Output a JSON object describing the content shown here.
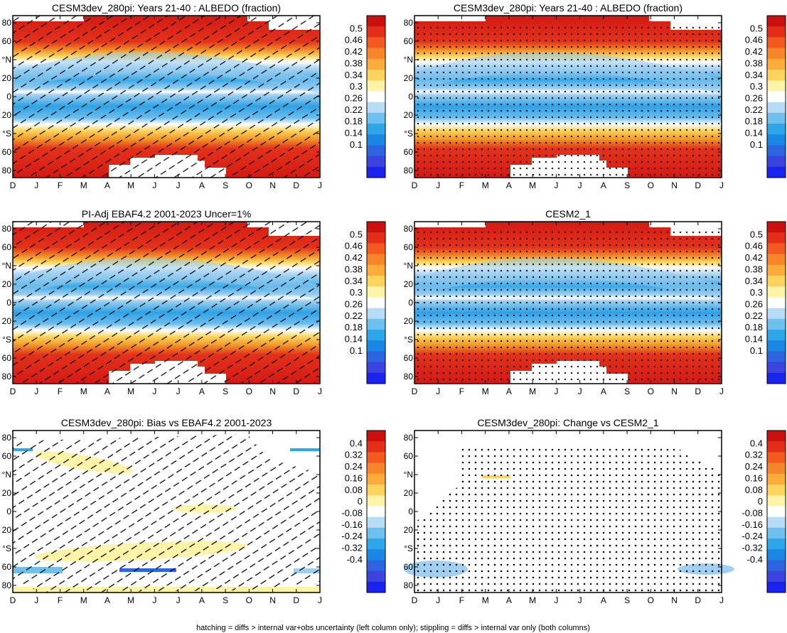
{
  "footer": "hatching = diffs > internal var+obs uncertainty (left column only); stippling = diffs > internal var only (both columns)",
  "chart_data": [
    {
      "type": "heatmap",
      "title": "CESM3dev_280pi: Years 21-40 : ALBEDO (fraction)",
      "field": "albedo",
      "overlay": "hatching",
      "x_ticks": [
        "D",
        "J",
        "F",
        "M",
        "A",
        "M",
        "J",
        "J",
        "A",
        "S",
        "O",
        "N",
        "D",
        "J"
      ],
      "y_ticks": [
        "80",
        "60",
        "°N",
        "20",
        "0",
        "20",
        "°S",
        "60",
        "80"
      ],
      "colorbar": [
        "0.5",
        "0.46",
        "0.42",
        "0.38",
        "0.34",
        "0.3",
        "0.26",
        "0.22",
        "0.18",
        "0.14",
        "0.1"
      ]
    },
    {
      "type": "heatmap",
      "title": "CESM3dev_280pi: Years 21-40 : ALBEDO (fraction)",
      "field": "albedo",
      "overlay": "stippling",
      "x_ticks": [
        "D",
        "J",
        "F",
        "M",
        "A",
        "M",
        "J",
        "J",
        "A",
        "S",
        "O",
        "N",
        "D",
        "J"
      ],
      "y_ticks": [
        "80",
        "60",
        "°N",
        "20",
        "0",
        "20",
        "°S",
        "60",
        "80"
      ],
      "colorbar": [
        "0.5",
        "0.46",
        "0.42",
        "0.38",
        "0.34",
        "0.3",
        "0.26",
        "0.22",
        "0.18",
        "0.14",
        "0.1"
      ]
    },
    {
      "type": "heatmap",
      "title": "PI-Adj EBAF4.2 2001-2023 Uncer=1%",
      "field": "albedo",
      "overlay": "hatching",
      "x_ticks": [
        "D",
        "J",
        "F",
        "M",
        "A",
        "M",
        "J",
        "J",
        "A",
        "S",
        "O",
        "N",
        "D",
        "J"
      ],
      "y_ticks": [
        "80",
        "60",
        "°N",
        "20",
        "0",
        "20",
        "°S",
        "60",
        "80"
      ],
      "colorbar": [
        "0.5",
        "0.46",
        "0.42",
        "0.38",
        "0.34",
        "0.3",
        "0.26",
        "0.22",
        "0.18",
        "0.14",
        "0.1"
      ]
    },
    {
      "type": "heatmap",
      "title": "CESM2_1",
      "field": "albedo",
      "overlay": "stippling",
      "x_ticks": [
        "D",
        "J",
        "F",
        "M",
        "A",
        "M",
        "J",
        "J",
        "A",
        "S",
        "O",
        "N",
        "D",
        "J"
      ],
      "y_ticks": [
        "80",
        "60",
        "°N",
        "20",
        "0",
        "20",
        "°S",
        "60",
        "80"
      ],
      "colorbar": [
        "0.5",
        "0.46",
        "0.42",
        "0.38",
        "0.34",
        "0.3",
        "0.26",
        "0.22",
        "0.18",
        "0.14",
        "0.1"
      ]
    },
    {
      "type": "heatmap",
      "title": "CESM3dev_280pi: Bias vs EBAF4.2 2001-2023",
      "field": "difference",
      "overlay": "hatching",
      "x_ticks": [
        "D",
        "J",
        "F",
        "M",
        "A",
        "M",
        "J",
        "J",
        "A",
        "S",
        "O",
        "N",
        "D",
        "J"
      ],
      "y_ticks": [
        "80",
        "60",
        "°N",
        "20",
        "0",
        "20",
        "°S",
        "60",
        "80"
      ],
      "colorbar": [
        "0.4",
        "0.32",
        "0.24",
        "0.16",
        "0.08",
        "0",
        "-0.08",
        "-0.16",
        "-0.24",
        "-0.32",
        "-0.4"
      ]
    },
    {
      "type": "heatmap",
      "title": "CESM3dev_280pi: Change vs CESM2_1",
      "field": "difference",
      "overlay": "stippling",
      "x_ticks": [
        "D",
        "J",
        "F",
        "M",
        "A",
        "M",
        "J",
        "J",
        "A",
        "S",
        "O",
        "N",
        "D",
        "J"
      ],
      "y_ticks": [
        "80",
        "60",
        "°N",
        "20",
        "0",
        "20",
        "°S",
        "60",
        "80"
      ],
      "colorbar": [
        "0.4",
        "0.32",
        "0.24",
        "0.16",
        "0.08",
        "0",
        "-0.08",
        "-0.16",
        "-0.24",
        "-0.32",
        "-0.4"
      ]
    }
  ]
}
